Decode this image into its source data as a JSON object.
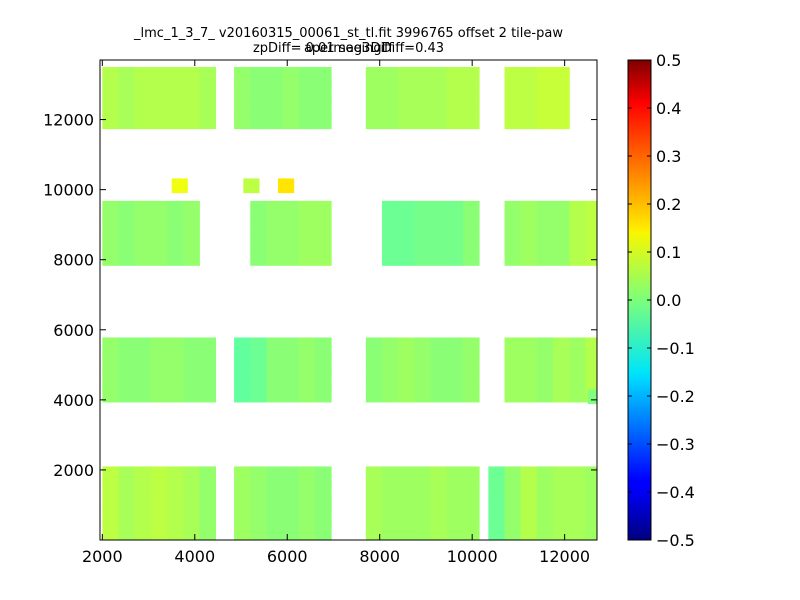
{
  "chart_data": {
    "type": "heatmap",
    "title": "_lmc_1_3_7_ v20160315_00061_st_tl.fit 3996765 offset 2 tile-paw apermag3Diff",
    "subtitle": "zpDiff= 0.01 seeingDiff=0.43",
    "xlabel": "",
    "ylabel": "",
    "xlim": [
      1950,
      12700
    ],
    "ylim": [
      0,
      13700
    ],
    "x_ticks": [
      2000,
      4000,
      6000,
      8000,
      10000,
      12000
    ],
    "y_ticks": [
      2000,
      4000,
      6000,
      8000,
      10000,
      12000
    ],
    "colorbar": {
      "range": [
        -0.5,
        0.5
      ],
      "ticks": [
        "0.5",
        "0.4",
        "0.3",
        "0.2",
        "0.1",
        "0.0",
        "−0.1",
        "−0.2",
        "−0.3",
        "−0.4",
        "−0.5"
      ],
      "colormap": "jet"
    },
    "cell_size": [
      350,
      420
    ],
    "cells": [
      [
        2000,
        2100,
        0.06
      ],
      [
        2350,
        2100,
        0.04
      ],
      [
        2700,
        2100,
        0.05
      ],
      [
        3050,
        2100,
        0.06
      ],
      [
        3400,
        2100,
        0.05
      ],
      [
        3750,
        2100,
        0.04
      ],
      [
        4100,
        2100,
        0.02
      ],
      [
        4850,
        2100,
        0.03
      ],
      [
        5200,
        2100,
        0.02
      ],
      [
        5550,
        2100,
        0.01
      ],
      [
        5900,
        2100,
        0.01
      ],
      [
        6250,
        2100,
        0.02
      ],
      [
        6600,
        2100,
        0.01
      ],
      [
        7700,
        2100,
        0.04
      ],
      [
        8050,
        2100,
        0.03
      ],
      [
        8400,
        2100,
        0.03
      ],
      [
        8750,
        2100,
        0.03
      ],
      [
        9100,
        2100,
        0.04
      ],
      [
        9450,
        2100,
        0.03
      ],
      [
        9800,
        2100,
        0.03
      ],
      [
        10350,
        2100,
        -0.02
      ],
      [
        10700,
        2100,
        0.02
      ],
      [
        11050,
        2100,
        0.05
      ],
      [
        11400,
        2100,
        0.03
      ],
      [
        11750,
        2100,
        0.04
      ],
      [
        12100,
        2100,
        0.04
      ],
      [
        12450,
        2100,
        0.03
      ],
      [
        2000,
        9680,
        0.02
      ],
      [
        2350,
        9680,
        0.01
      ],
      [
        2700,
        9680,
        0.02
      ],
      [
        3050,
        9680,
        0.02
      ],
      [
        3400,
        9680,
        0.01
      ],
      [
        3750,
        9680,
        0.02
      ],
      [
        5200,
        9680,
        0.01
      ],
      [
        5550,
        9680,
        0.02
      ],
      [
        5900,
        9680,
        0.02
      ],
      [
        6250,
        9680,
        0.03
      ],
      [
        6600,
        9680,
        0.03
      ],
      [
        8050,
        9680,
        -0.02
      ],
      [
        8400,
        9680,
        -0.02
      ],
      [
        8750,
        9680,
        -0.01
      ],
      [
        9100,
        9680,
        -0.01
      ],
      [
        9450,
        9680,
        -0.01
      ],
      [
        9800,
        9680,
        0.01
      ],
      [
        10700,
        9680,
        0.02
      ],
      [
        11050,
        9680,
        0.03
      ],
      [
        11400,
        9680,
        0.02
      ],
      [
        11750,
        9680,
        0.02
      ],
      [
        12100,
        9680,
        0.05
      ],
      [
        12450,
        9680,
        0.06
      ],
      [
        2000,
        5780,
        0.02
      ],
      [
        2350,
        5780,
        0.01
      ],
      [
        2700,
        5780,
        0.01
      ],
      [
        3050,
        5780,
        0.02
      ],
      [
        3400,
        5780,
        0.02
      ],
      [
        3750,
        5780,
        0.01
      ],
      [
        4100,
        5780,
        0.01
      ],
      [
        4850,
        5780,
        -0.03
      ],
      [
        5200,
        5780,
        -0.02
      ],
      [
        5550,
        5780,
        0.01
      ],
      [
        5900,
        5780,
        0.01
      ],
      [
        6250,
        5780,
        0.02
      ],
      [
        6600,
        5780,
        0.01
      ],
      [
        7700,
        5780,
        0.01
      ],
      [
        8050,
        5780,
        0.02
      ],
      [
        8400,
        5780,
        0.03
      ],
      [
        8750,
        5780,
        0.02
      ],
      [
        9100,
        5780,
        0.01
      ],
      [
        9450,
        5780,
        0.01
      ],
      [
        9800,
        5780,
        0.02
      ],
      [
        10700,
        5780,
        0.03
      ],
      [
        11050,
        5780,
        0.03
      ],
      [
        11400,
        5780,
        0.02
      ],
      [
        11750,
        5780,
        0.04
      ],
      [
        12100,
        5780,
        0.03
      ],
      [
        12450,
        5780,
        0.05
      ],
      [
        2000,
        13500,
        0.05
      ],
      [
        2350,
        13500,
        0.04
      ],
      [
        2700,
        13500,
        0.05
      ],
      [
        3050,
        13500,
        0.05
      ],
      [
        3400,
        13500,
        0.05
      ],
      [
        3750,
        13500,
        0.05
      ],
      [
        4100,
        13500,
        0.04
      ],
      [
        4850,
        13500,
        0.02
      ],
      [
        5200,
        13500,
        0.01
      ],
      [
        5550,
        13500,
        0.01
      ],
      [
        5900,
        13500,
        0.02
      ],
      [
        6250,
        13500,
        0.01
      ],
      [
        6600,
        13500,
        0.01
      ],
      [
        7700,
        13500,
        0.03
      ],
      [
        8050,
        13500,
        0.03
      ],
      [
        8400,
        13500,
        0.04
      ],
      [
        8750,
        13500,
        0.04
      ],
      [
        9100,
        13500,
        0.04
      ],
      [
        9450,
        13500,
        0.05
      ],
      [
        9800,
        13500,
        0.05
      ],
      [
        10700,
        13500,
        0.06
      ],
      [
        11050,
        13500,
        0.06
      ],
      [
        11400,
        13500,
        0.07
      ],
      [
        11750,
        13500,
        0.07
      ],
      [
        3500,
        10320,
        0.11
      ],
      [
        5050,
        10320,
        0.06
      ],
      [
        5800,
        10320,
        0.15
      ],
      [
        12500,
        4300,
        0.0
      ]
    ]
  }
}
